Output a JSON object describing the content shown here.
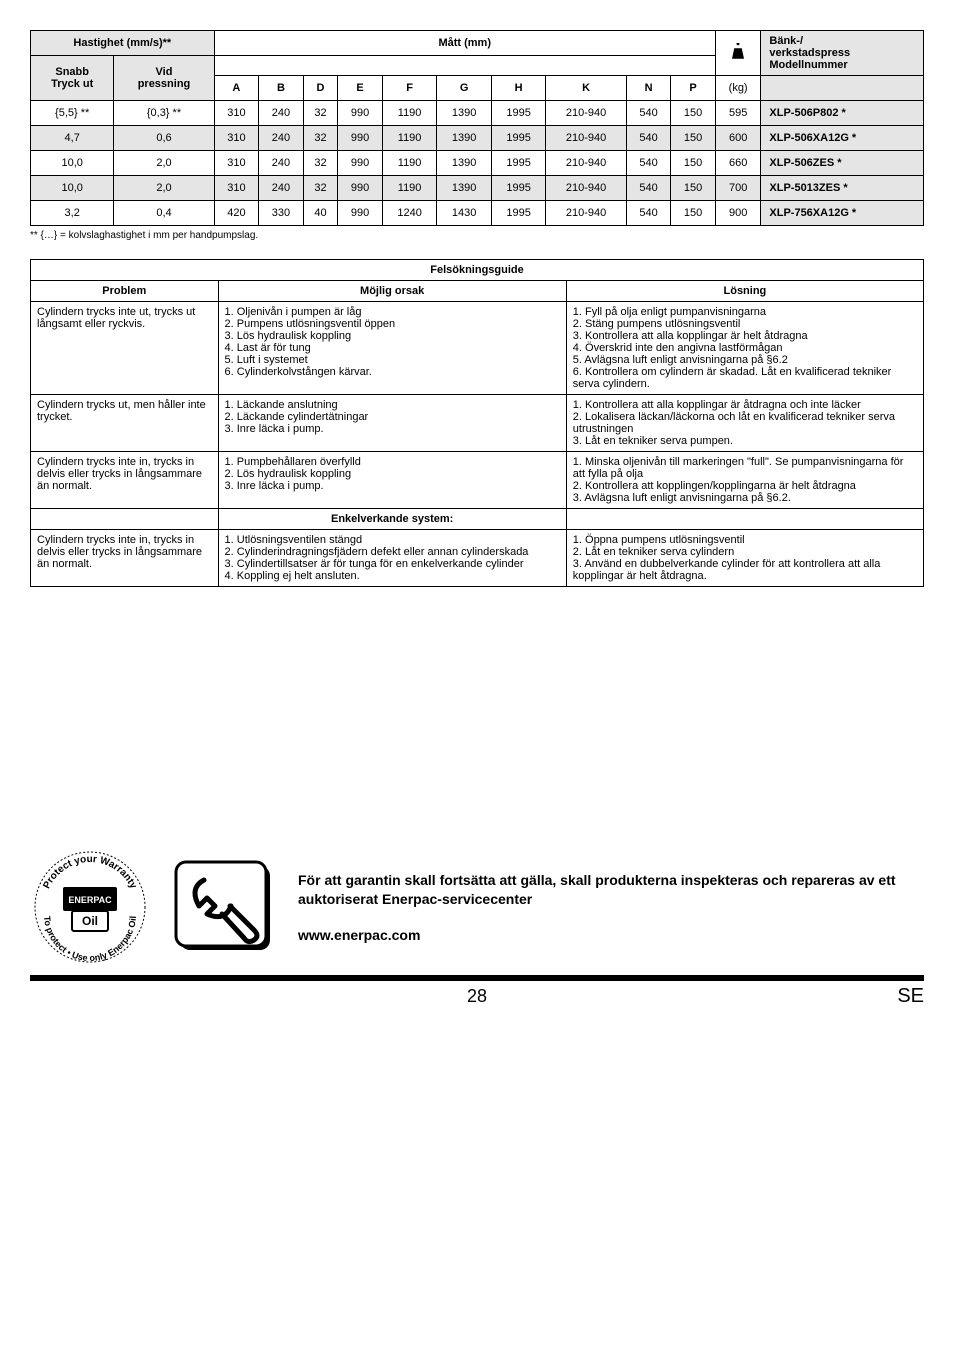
{
  "specTable": {
    "headers": {
      "speed_group": "Hastighet (mm/s)**",
      "dims_group": "Mått (mm)",
      "bench_group": "Bänk-/\nverkstadspress\nModellnummer",
      "snabb": "Snabb\nTryck ut",
      "vid": "Vid\npressning",
      "cols": [
        "A",
        "B",
        "D",
        "E",
        "F",
        "G",
        "H",
        "K",
        "N",
        "P"
      ],
      "weight_unit": "(kg)"
    },
    "rows": [
      {
        "shade": false,
        "snabb": "{5,5} **",
        "vid": "{0,3} **",
        "v": [
          "310",
          "240",
          "32",
          "990",
          "1190",
          "1390",
          "1995",
          "210-940",
          "540",
          "150"
        ],
        "kg": "595",
        "model": "XLP-506P802 *"
      },
      {
        "shade": true,
        "snabb": "4,7",
        "vid": "0,6",
        "v": [
          "310",
          "240",
          "32",
          "990",
          "1190",
          "1390",
          "1995",
          "210-940",
          "540",
          "150"
        ],
        "kg": "600",
        "model": "XLP-506XA12G *"
      },
      {
        "shade": false,
        "snabb": "10,0",
        "vid": "2,0",
        "v": [
          "310",
          "240",
          "32",
          "990",
          "1190",
          "1390",
          "1995",
          "210-940",
          "540",
          "150"
        ],
        "kg": "660",
        "model": "XLP-506ZES *"
      },
      {
        "shade": true,
        "snabb": "10,0",
        "vid": "2,0",
        "v": [
          "310",
          "240",
          "32",
          "990",
          "1190",
          "1390",
          "1995",
          "210-940",
          "540",
          "150"
        ],
        "kg": "700",
        "model": "XLP-5013ZES *"
      },
      {
        "shade": false,
        "snabb": "3,2",
        "vid": "0,4",
        "v": [
          "420",
          "330",
          "40",
          "990",
          "1240",
          "1430",
          "1995",
          "210-940",
          "540",
          "150"
        ],
        "kg": "900",
        "model": "XLP-756XA12G *"
      }
    ],
    "footnote": "** {…} = kolvslaghastighet i mm per handpumpslag."
  },
  "guideTable": {
    "title": "Felsökningsguide",
    "headers": {
      "problem": "Problem",
      "cause": "Möjlig orsak",
      "solution": "Lösning"
    },
    "rows": [
      {
        "problem": "Cylindern trycks inte ut, trycks ut långsamt eller ryckvis.",
        "cause": "1. Oljenivån i pumpen är låg\n2. Pumpens utlösningsventil öppen\n3. Lös hydraulisk koppling\n4. Last är för tung\n5. Luft i systemet\n6. Cylinderkolvstången kärvar.",
        "solution": "1. Fyll på olja enligt pumpanvisningarna\n2. Stäng pumpens utlösningsventil\n3. Kontrollera att alla kopplingar är helt åtdragna\n4. Överskrid inte den angivna lastförmågan\n5. Avlägsna luft enligt anvisningarna på §6.2\n6. Kontrollera om cylindern är skadad. Låt en kvalificerad tekniker serva cylindern."
      },
      {
        "problem": "Cylindern trycks ut, men håller inte trycket.",
        "cause": "1. Läckande anslutning\n2. Läckande cylindertätningar\n3. Inre läcka i pump.",
        "solution": "1. Kontrollera att alla kopplingar är åtdragna och inte läcker\n2. Lokalisera läckan/läckorna och låt en kvalificerad tekniker serva utrustningen\n3. Låt en tekniker serva pumpen."
      },
      {
        "problem": "Cylindern trycks inte in, trycks in delvis eller trycks in långsammare än normalt.",
        "cause": "1. Pumpbehållaren överfylld\n2. Lös hydraulisk koppling\n3. Inre läcka i pump.",
        "solution": "1. Minska oljenivån till markeringen \"full\". Se pumpanvisningarna för att fylla på olja\n2. Kontrollera att kopplingen/kopplingarna är helt åtdragna\n3. Avlägsna luft enligt anvisningarna på §6.2."
      }
    ],
    "singleHeader": "Enkelverkande system:",
    "singleRow": {
      "problem": "Cylindern trycks inte in, trycks in delvis eller trycks in långsammare än normalt.",
      "cause": "1. Utlösningsventilen stängd\n2. Cylinderindragningsfjädern defekt eller annan cylinderskada\n3. Cylindertillsatser är för tunga för en enkelverkande cylinder\n4. Koppling ej helt ansluten.",
      "solution": "1. Öppna pumpens utlösningsventil\n2. Låt en tekniker serva cylindern\n3. Använd en dubbelverkande cylinder för att kontrollera att alla kopplingar är helt åtdragna."
    }
  },
  "footer": {
    "warranty_top": "Protect your Warranty",
    "warranty_mid": "Oil",
    "warranty_bottom": "Use only Enerpac Oil",
    "text": "För att garantin skall fortsätta att gälla, skall produkterna inspekteras och repareras av ett auktoriserat Enerpac-servicecenter",
    "link": "www.enerpac.com",
    "page": "28",
    "lang": "SE"
  }
}
